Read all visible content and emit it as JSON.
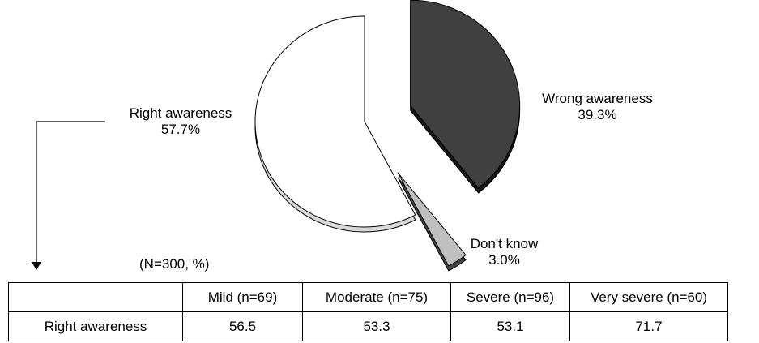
{
  "chart_data": [
    {
      "type": "pie",
      "slices": [
        {
          "label": "Wrong awareness",
          "value": 39.3,
          "value_label": "39.3%",
          "color": "#404040"
        },
        {
          "label": "Don't know",
          "value": 3.0,
          "value_label": "3.0%",
          "color": "#bfbfbf"
        },
        {
          "label": "Right awareness",
          "value": 57.7,
          "value_label": "57.7%",
          "color": "#ffffff"
        }
      ],
      "exploded": true,
      "three_d": true
    },
    {
      "type": "table",
      "note": "(N=300, %)",
      "columns": [
        "Mild (n=69)",
        "Moderate (n=75)",
        "Severe (n=96)",
        "Very severe (n=60)"
      ],
      "rows": [
        {
          "label": "Right awareness",
          "values": [
            "56.5",
            "53.3",
            "53.1",
            "71.7"
          ]
        }
      ]
    }
  ]
}
